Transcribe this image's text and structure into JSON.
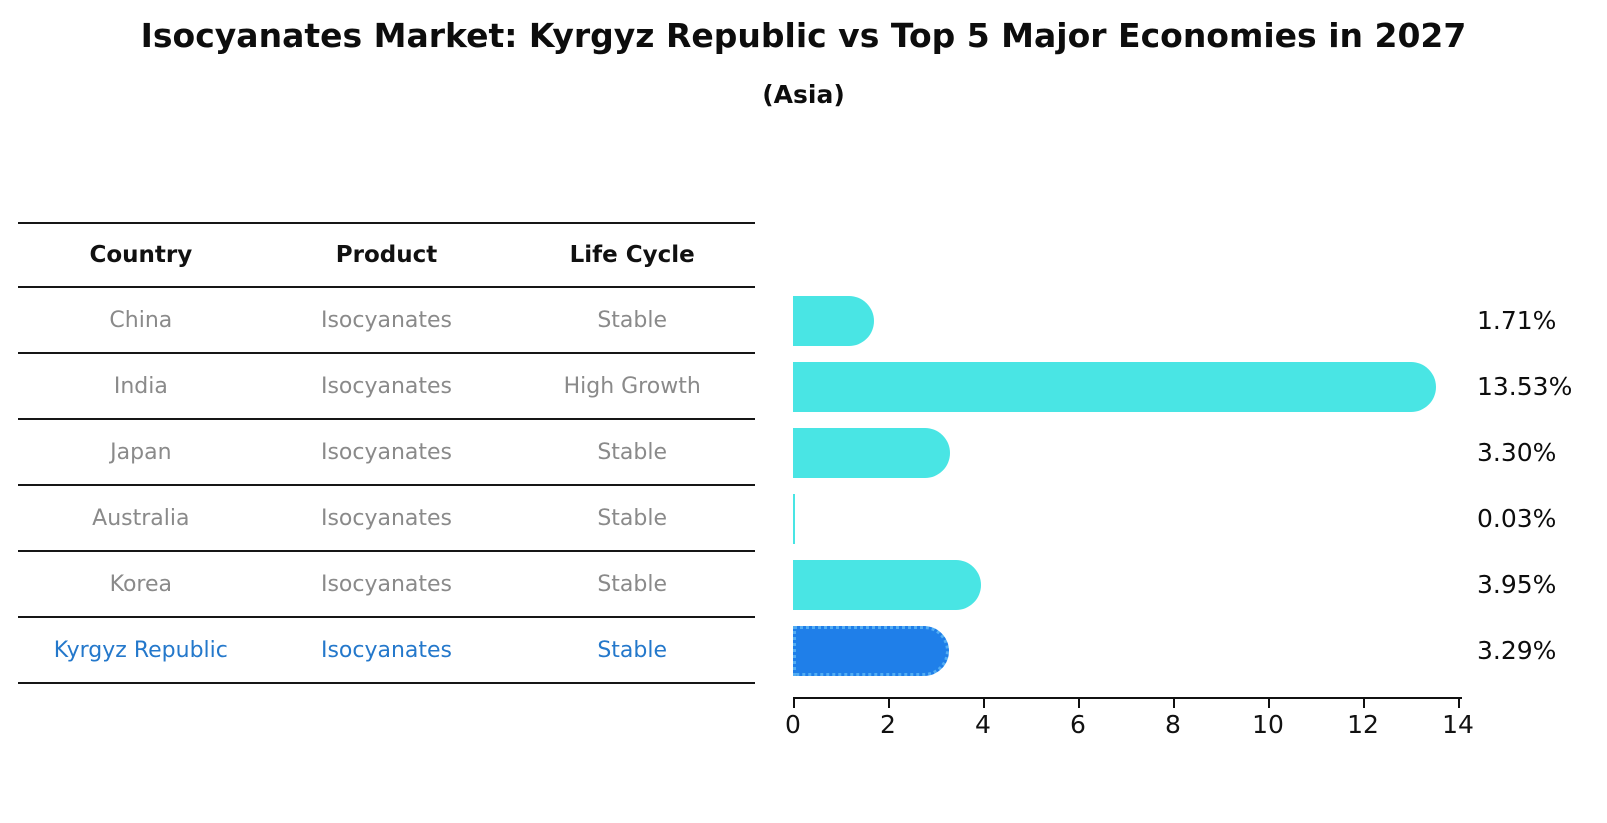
{
  "title": "Isocyanates Market: Kyrgyz Republic vs Top 5 Major Economies in 2027",
  "subtitle": "(Asia)",
  "colors": {
    "bar": "#49E5E4",
    "highlight_bar": "#1F7FE9",
    "highlight_border": "#53ADF3",
    "highlight_text": "#2478CB",
    "row_text": "#8a8a8a",
    "header_text": "#111111"
  },
  "table": {
    "headers": [
      "Country",
      "Product",
      "Life Cycle"
    ],
    "rows": [
      {
        "country": "China",
        "product": "Isocyanates",
        "life_cycle": "Stable",
        "highlight": false
      },
      {
        "country": "India",
        "product": "Isocyanates",
        "life_cycle": "High Growth",
        "highlight": false
      },
      {
        "country": "Japan",
        "product": "Isocyanates",
        "life_cycle": "Stable",
        "highlight": false
      },
      {
        "country": "Australia",
        "product": "Isocyanates",
        "life_cycle": "Stable",
        "highlight": false
      },
      {
        "country": "Korea",
        "product": "Isocyanates",
        "life_cycle": "Stable",
        "highlight": false
      },
      {
        "country": "Kyrgyz Republic",
        "product": "Isocyanates",
        "life_cycle": "Stable",
        "highlight": true
      }
    ]
  },
  "chart_data": {
    "type": "bar",
    "orientation": "horizontal",
    "title": "Isocyanates Market: Kyrgyz Republic vs Top 5 Major Economies in 2027",
    "subtitle": "(Asia)",
    "categories": [
      "China",
      "India",
      "Japan",
      "Australia",
      "Korea",
      "Kyrgyz Republic"
    ],
    "values": [
      1.71,
      13.53,
      3.3,
      0.03,
      3.95,
      3.29
    ],
    "value_labels": [
      "1.71%",
      "13.53%",
      "3.30%",
      "0.03%",
      "3.95%",
      "3.29%"
    ],
    "xlim": [
      0,
      14
    ],
    "xticks": [
      0,
      2,
      4,
      6,
      8,
      10,
      12,
      14
    ],
    "highlight_index": 5,
    "grid": false,
    "legend": false
  }
}
